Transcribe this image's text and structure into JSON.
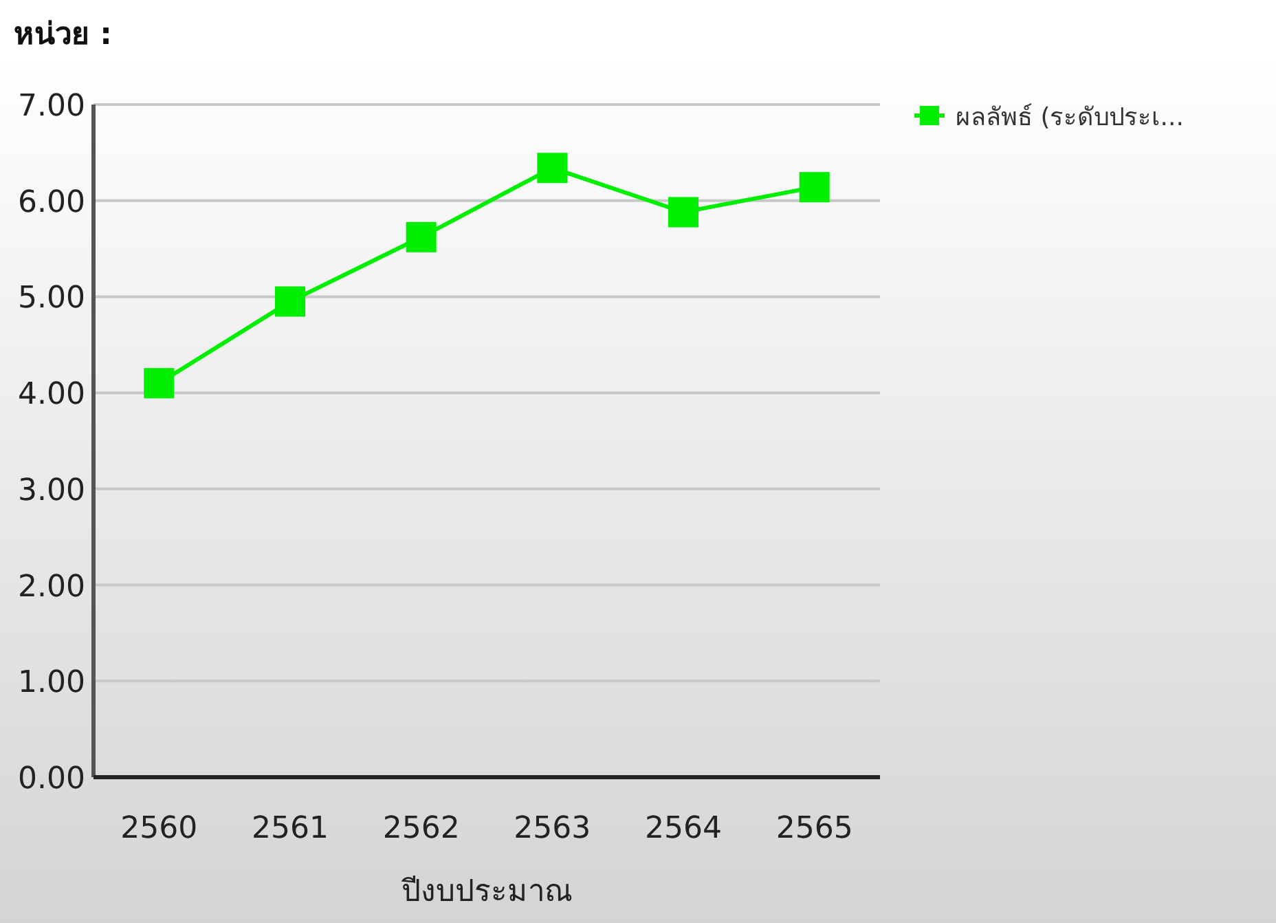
{
  "chart_data": {
    "type": "line",
    "ylabel": "หน่วย :",
    "xlabel": "ปีงบประมาณ",
    "categories": [
      "2560",
      "2561",
      "2562",
      "2563",
      "2564",
      "2565"
    ],
    "series": [
      {
        "name": "ผลลัพธ์ (ระดับประเ...",
        "color": "#00ee00",
        "values": [
          4.1,
          4.95,
          5.62,
          6.34,
          5.88,
          6.14
        ]
      }
    ],
    "ylim": [
      0,
      7
    ],
    "yticks": [
      {
        "value": 0,
        "label": "0.00"
      },
      {
        "value": 1,
        "label": "1.00"
      },
      {
        "value": 2,
        "label": "2.00"
      },
      {
        "value": 3,
        "label": "3.00"
      },
      {
        "value": 4,
        "label": "4.00"
      },
      {
        "value": 5,
        "label": "5.00"
      },
      {
        "value": 6,
        "label": "6.00"
      },
      {
        "value": 7,
        "label": "7.00"
      }
    ],
    "grid": "y",
    "legend": "top right",
    "marker": "square",
    "line_style": "solid"
  }
}
